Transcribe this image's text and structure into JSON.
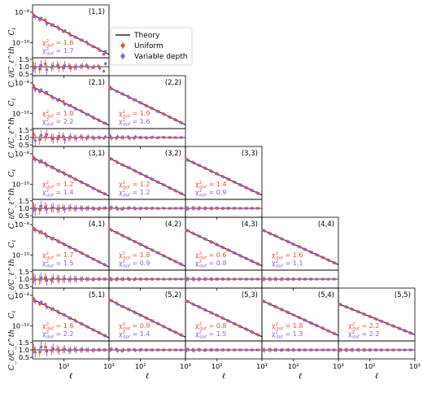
{
  "chart_data": {
    "type": "scatter",
    "description_free": true,
    "legend": {
      "placement": "top-center",
      "entries": [
        {
          "label": "Theory",
          "color": "#000000",
          "style": "line"
        },
        {
          "label": "Uniform",
          "color": "#e8553a",
          "style": "point"
        },
        {
          "label": "Variable depth",
          "color": "#8a63d2",
          "style": "point"
        }
      ]
    },
    "colors": {
      "theory": "#000000",
      "uniform": "#e8553a",
      "variable": "#8a63d2"
    },
    "ylabel_top": "C_ℓ",
    "ylabel_bottom": "C_ℓ/C_ℓ^th",
    "xlabel": "ℓ",
    "x_log": true,
    "y_log": true,
    "xlim": [
      20,
      1000
    ],
    "ylim_top": [
      1e-11,
      3e-08
    ],
    "ylim_ratio": [
      0.4,
      1.6
    ],
    "xticks": [
      {
        "v": 100,
        "label": "10²"
      },
      {
        "v": 1000,
        "label": "10³"
      }
    ],
    "yticks_top": [
      {
        "v": 1e-08,
        "label": "10⁻⁸"
      },
      {
        "v": 1e-10,
        "label": "10⁻¹⁰"
      }
    ],
    "yticks_ratio": [
      {
        "v": 0.5,
        "label": "0.5"
      },
      {
        "v": 1.0,
        "label": "1.0"
      },
      {
        "v": 1.5,
        "label": "1.5"
      }
    ],
    "ell": [
      22,
      30,
      40,
      55,
      75,
      100,
      135,
      180,
      245,
      330,
      450,
      600,
      800
    ],
    "chi2_symbol": "χ²",
    "chi2_subscript": "dof",
    "panels": [
      {
        "id": "(1,1)",
        "i": 1,
        "j": 1,
        "amp": 6e-09,
        "slope": -1.55,
        "chi2_uniform": "1.6",
        "chi2_variable": "1.7",
        "ratio_uniform": [
          1.0,
          0.85,
          1.2,
          0.95,
          1.1,
          0.9,
          1.05,
          0.95,
          1.0,
          1.1,
          0.95,
          1.05,
          0.7
        ],
        "ratio_variable": [
          0.9,
          1.1,
          0.8,
          1.05,
          0.95,
          1.1,
          0.9,
          1.0,
          1.05,
          0.95,
          1.0,
          0.9,
          1.2
        ]
      },
      {
        "id": "(2,1)",
        "i": 2,
        "j": 1,
        "amp": 5e-09,
        "slope": -1.5,
        "chi2_uniform": "1.0",
        "chi2_variable": "2.2",
        "ratio_uniform": [
          1.2,
          0.85,
          1.05,
          1.0,
          0.9,
          1.1,
          0.95,
          1.0,
          1.05,
          0.95,
          1.0,
          1.0,
          0.95
        ],
        "ratio_variable": [
          0.8,
          1.15,
          1.2,
          0.9,
          1.1,
          0.85,
          1.05,
          0.95,
          1.0,
          1.05,
          0.95,
          1.0,
          1.05
        ]
      },
      {
        "id": "(2,2)",
        "i": 2,
        "j": 2,
        "amp": 4.5e-09,
        "slope": -1.45,
        "chi2_uniform": "1.9",
        "chi2_variable": "1.6",
        "ratio_uniform": [
          1.1,
          0.95,
          1.0,
          1.05,
          0.95,
          1.0,
          1.0,
          1.0,
          0.98,
          1.02,
          1.0,
          1.0,
          1.0
        ],
        "ratio_variable": [
          0.95,
          1.05,
          1.0,
          0.95,
          1.05,
          1.0,
          0.98,
          1.02,
          1.0,
          1.0,
          1.0,
          0.99,
          1.0
        ]
      },
      {
        "id": "(3,1)",
        "i": 3,
        "j": 1,
        "amp": 5e-09,
        "slope": -1.5,
        "chi2_uniform": "1.2",
        "chi2_variable": "1.4",
        "ratio_uniform": [
          1.05,
          0.9,
          1.1,
          1.0,
          0.95,
          1.05,
          1.0,
          0.98,
          1.02,
          1.0,
          1.0,
          0.97,
          1.0
        ],
        "ratio_variable": [
          0.9,
          1.15,
          0.95,
          1.05,
          1.0,
          0.95,
          1.05,
          1.0,
          1.0,
          1.02,
          0.98,
          1.0,
          1.03
        ]
      },
      {
        "id": "(3,2)",
        "i": 3,
        "j": 2,
        "amp": 4.5e-09,
        "slope": -1.45,
        "chi2_uniform": "1.2",
        "chi2_variable": "1.2",
        "ratio_uniform": [
          1.0,
          1.05,
          0.95,
          1.0,
          1.02,
          0.98,
          1.0,
          1.0,
          1.0,
          1.01,
          0.99,
          1.0,
          1.0
        ],
        "ratio_variable": [
          1.05,
          0.95,
          1.0,
          1.03,
          0.97,
          1.0,
          1.0,
          1.01,
          0.99,
          1.0,
          1.0,
          1.0,
          1.0
        ]
      },
      {
        "id": "(3,3)",
        "i": 3,
        "j": 3,
        "amp": 4e-09,
        "slope": -1.4,
        "chi2_uniform": "1.4",
        "chi2_variable": "0.9",
        "ratio_uniform": [
          1.0,
          1.02,
          0.98,
          1.0,
          1.0,
          1.01,
          0.99,
          1.0,
          1.0,
          1.0,
          1.0,
          1.0,
          1.0
        ],
        "ratio_variable": [
          0.98,
          1.0,
          1.02,
          1.0,
          0.99,
          1.0,
          1.0,
          1.0,
          1.01,
          1.0,
          1.0,
          1.0,
          1.0
        ]
      },
      {
        "id": "(4,1)",
        "i": 4,
        "j": 1,
        "amp": 5e-09,
        "slope": -1.5,
        "chi2_uniform": "1.7",
        "chi2_variable": "1.5",
        "ratio_uniform": [
          1.05,
          0.95,
          1.1,
          0.9,
          1.05,
          1.0,
          0.97,
          1.02,
          1.0,
          1.0,
          0.98,
          1.0,
          1.0
        ],
        "ratio_variable": [
          0.95,
          1.1,
          0.9,
          1.05,
          0.98,
          1.02,
          1.0,
          0.99,
          1.01,
          1.0,
          1.0,
          1.0,
          1.0
        ]
      },
      {
        "id": "(4,2)",
        "i": 4,
        "j": 2,
        "amp": 4.5e-09,
        "slope": -1.45,
        "chi2_uniform": "1.8",
        "chi2_variable": "0.9",
        "ratio_uniform": [
          1.02,
          0.98,
          1.0,
          1.03,
          0.97,
          1.0,
          1.0,
          1.0,
          1.0,
          1.0,
          1.0,
          1.0,
          1.0
        ],
        "ratio_variable": [
          0.98,
          1.02,
          1.0,
          0.98,
          1.02,
          1.0,
          1.0,
          1.0,
          1.0,
          1.0,
          1.0,
          1.0,
          1.0
        ]
      },
      {
        "id": "(4,3)",
        "i": 4,
        "j": 3,
        "amp": 4e-09,
        "slope": -1.4,
        "chi2_uniform": "0.6",
        "chi2_variable": "0.8",
        "ratio_uniform": [
          1.0,
          1.01,
          0.99,
          1.0,
          1.0,
          1.0,
          1.0,
          1.0,
          1.0,
          1.0,
          1.0,
          1.0,
          1.0
        ],
        "ratio_variable": [
          1.01,
          0.99,
          1.0,
          1.0,
          1.0,
          1.0,
          1.0,
          1.0,
          1.0,
          1.0,
          1.0,
          1.0,
          1.0
        ]
      },
      {
        "id": "(4,4)",
        "i": 4,
        "j": 4,
        "amp": 4e-09,
        "slope": -1.35,
        "chi2_uniform": "1.6",
        "chi2_variable": "1.1",
        "ratio_uniform": [
          1.0,
          1.0,
          1.01,
          0.99,
          1.0,
          1.0,
          1.0,
          1.0,
          1.0,
          1.0,
          1.0,
          1.0,
          1.0
        ],
        "ratio_variable": [
          1.0,
          0.99,
          1.0,
          1.01,
          1.0,
          1.0,
          1.0,
          1.0,
          1.0,
          1.0,
          1.0,
          1.0,
          1.0
        ]
      },
      {
        "id": "(5,1)",
        "i": 5,
        "j": 1,
        "amp": 5e-09,
        "slope": -1.5,
        "chi2_uniform": "1.6",
        "chi2_variable": "2.2",
        "ratio_uniform": [
          1.1,
          0.85,
          1.2,
          0.95,
          1.05,
          1.0,
          0.95,
          1.05,
          1.0,
          1.0,
          0.98,
          1.0,
          1.0
        ],
        "ratio_variable": [
          0.85,
          1.2,
          0.9,
          1.1,
          0.95,
          1.05,
          1.0,
          0.98,
          1.02,
          1.0,
          1.0,
          1.0,
          1.0
        ]
      },
      {
        "id": "(5,2)",
        "i": 5,
        "j": 2,
        "amp": 4.5e-09,
        "slope": -1.45,
        "chi2_uniform": "0.9",
        "chi2_variable": "1.4",
        "ratio_uniform": [
          1.0,
          1.05,
          0.95,
          1.0,
          1.02,
          0.98,
          1.0,
          1.0,
          1.0,
          1.0,
          1.0,
          1.0,
          1.0
        ],
        "ratio_variable": [
          1.05,
          0.95,
          1.0,
          1.0,
          0.98,
          1.02,
          1.0,
          1.0,
          1.0,
          1.0,
          1.0,
          1.0,
          1.0
        ]
      },
      {
        "id": "(5,3)",
        "i": 5,
        "j": 3,
        "amp": 4e-09,
        "slope": -1.4,
        "chi2_uniform": "0.8",
        "chi2_variable": "1.5",
        "ratio_uniform": [
          1.0,
          1.0,
          1.02,
          0.98,
          1.0,
          1.0,
          1.0,
          1.0,
          1.0,
          1.0,
          1.0,
          1.0,
          1.0
        ],
        "ratio_variable": [
          1.02,
          0.98,
          1.0,
          1.0,
          1.0,
          1.0,
          1.0,
          1.0,
          1.0,
          1.0,
          1.0,
          1.0,
          1.0
        ]
      },
      {
        "id": "(5,4)",
        "i": 5,
        "j": 4,
        "amp": 4e-09,
        "slope": -1.35,
        "chi2_uniform": "1.8",
        "chi2_variable": "1.3",
        "ratio_uniform": [
          1.0,
          1.01,
          1.0,
          0.99,
          1.0,
          1.0,
          1.0,
          1.0,
          1.0,
          1.0,
          1.0,
          1.0,
          1.0
        ],
        "ratio_variable": [
          0.99,
          1.0,
          1.01,
          1.0,
          1.0,
          1.0,
          1.0,
          1.0,
          1.0,
          1.0,
          1.0,
          1.0,
          1.0
        ]
      },
      {
        "id": "(5,5)",
        "i": 5,
        "j": 5,
        "amp": 2.5e-09,
        "slope": -1.2,
        "chi2_uniform": "2.2",
        "chi2_variable": "2.2",
        "ratio_uniform": [
          1.0,
          1.0,
          1.0,
          1.0,
          1.0,
          1.0,
          1.0,
          1.0,
          1.0,
          1.0,
          1.0,
          1.0,
          1.0
        ],
        "ratio_variable": [
          1.0,
          1.0,
          1.0,
          1.0,
          1.0,
          1.0,
          1.0,
          1.0,
          1.0,
          1.0,
          1.0,
          1.0,
          1.0
        ]
      }
    ]
  }
}
